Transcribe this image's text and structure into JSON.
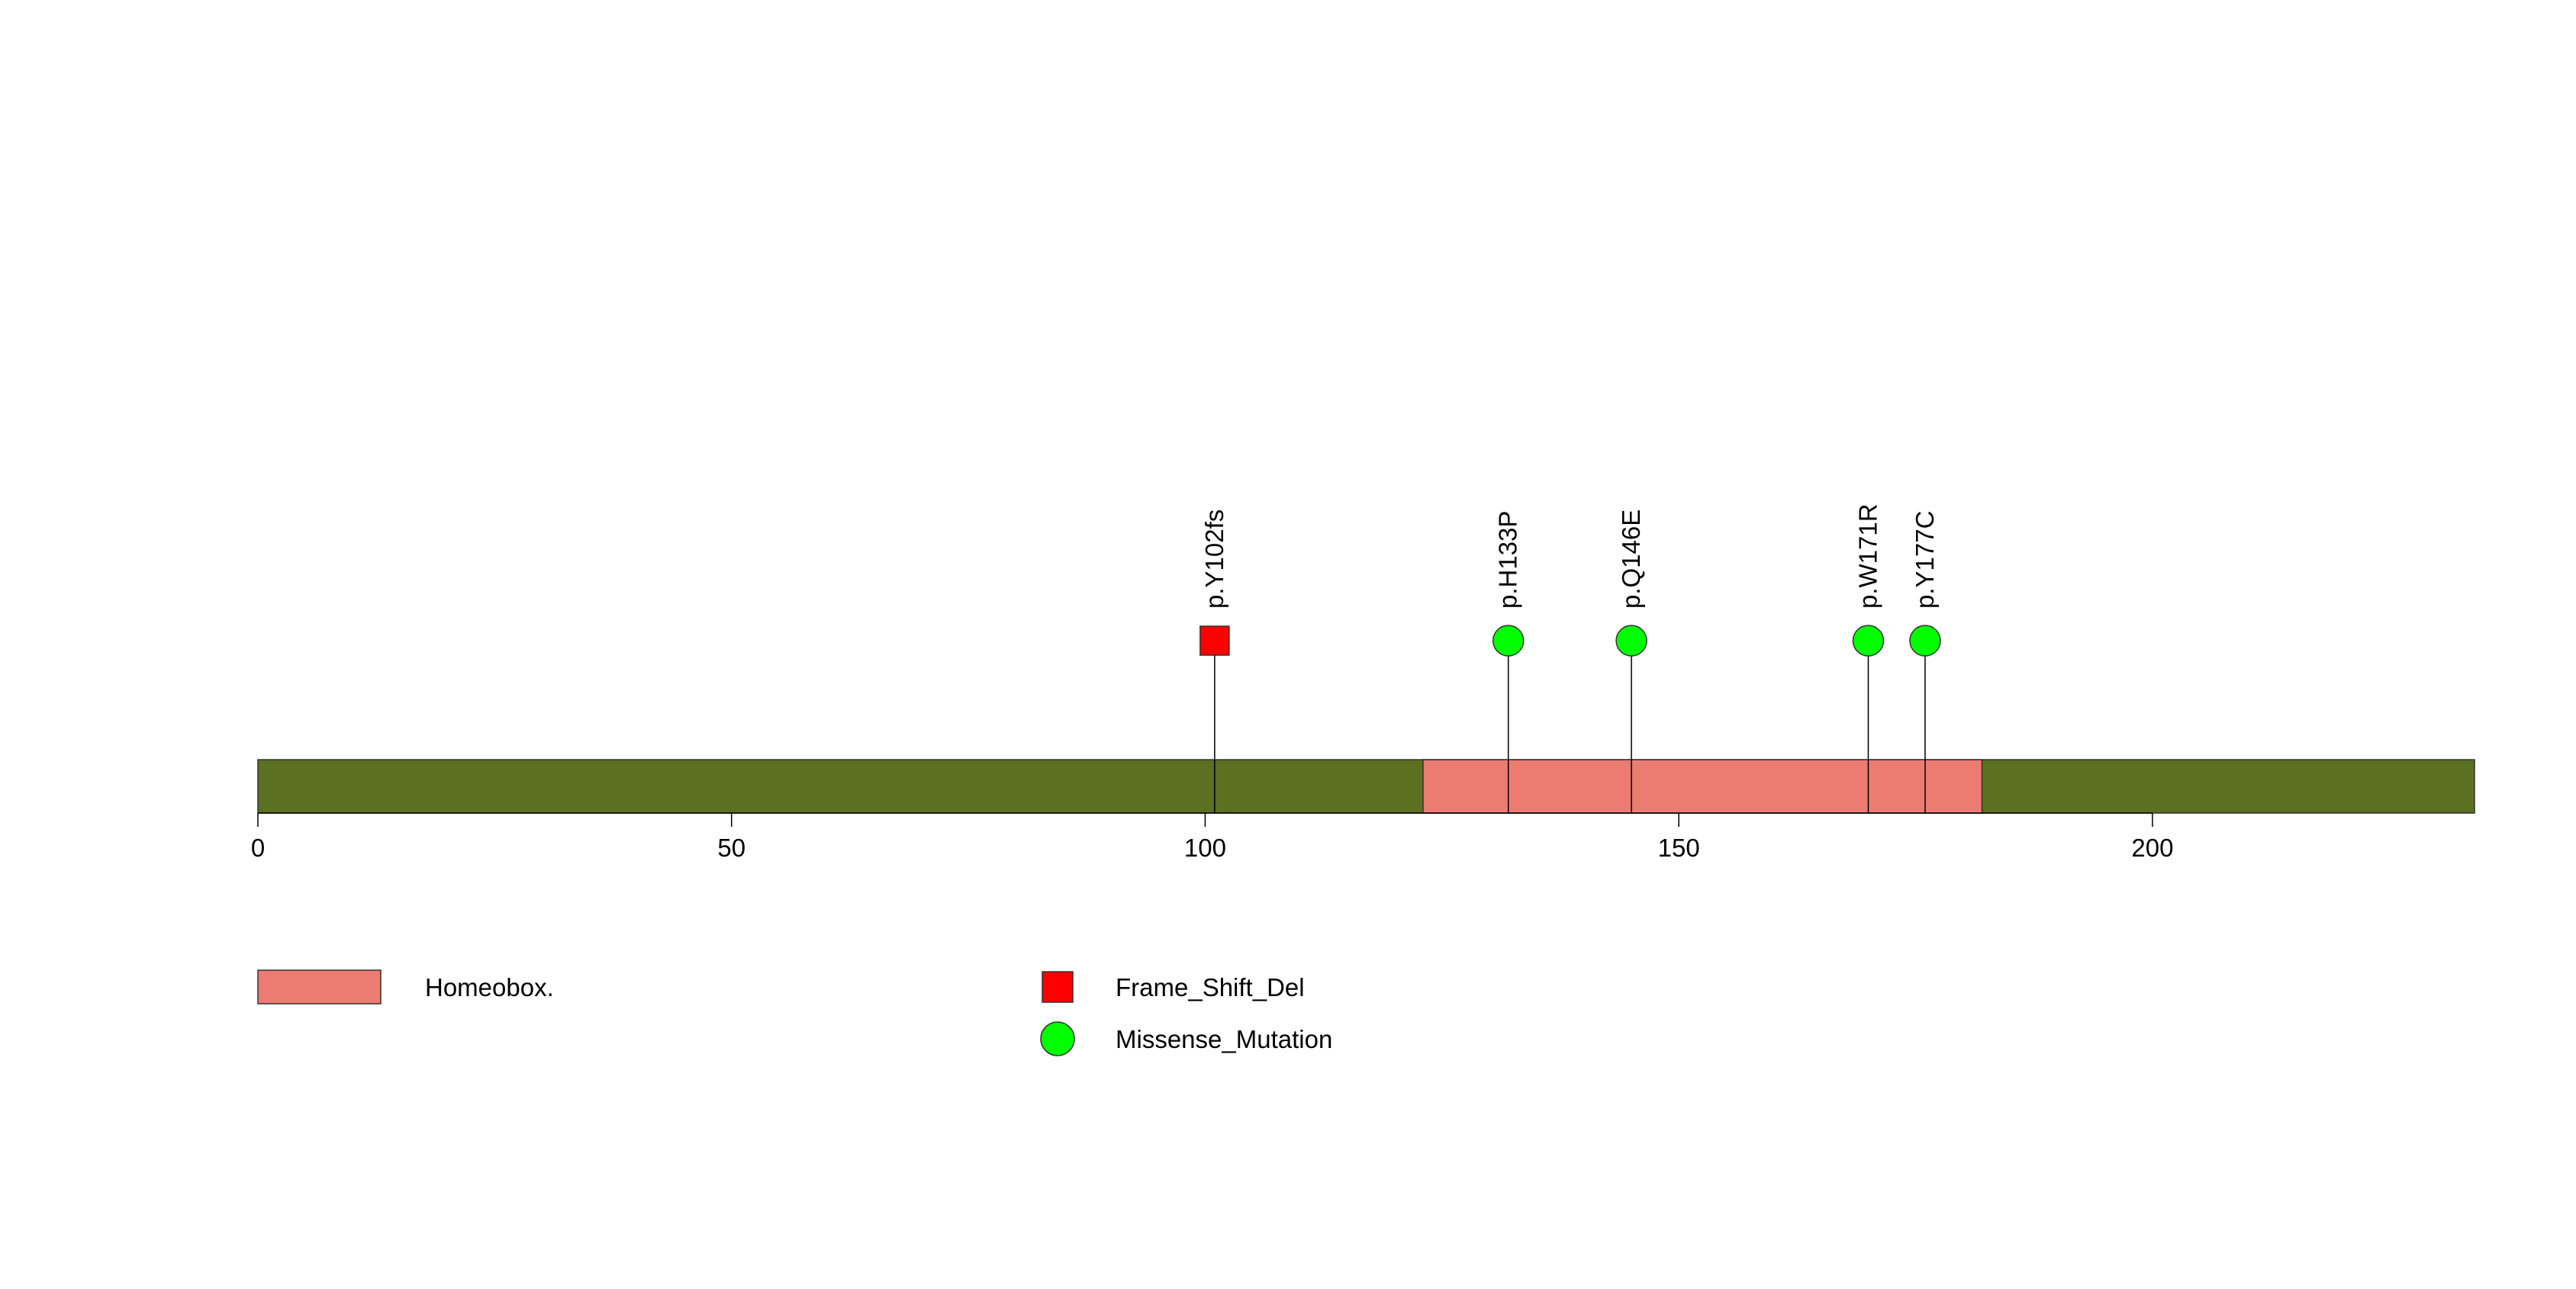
{
  "chart_data": {
    "type": "lollipop",
    "title": "",
    "xlabel": "",
    "ylabel": "",
    "xlim": [
      0,
      234
    ],
    "x_ticks": [
      0,
      50,
      100,
      150,
      200
    ],
    "x_tick_labels": [
      "0",
      "50",
      "100",
      "150",
      "200"
    ],
    "protein_length": 234,
    "backbone_color": "#5b7021",
    "domains": [
      {
        "name": "Homeobox.",
        "start": 123,
        "end": 182,
        "color": "#ec7b72"
      }
    ],
    "mutations": [
      {
        "label": "p.Y102fs",
        "position": 101,
        "type": "Frame_Shift_Del"
      },
      {
        "label": "p.H133P",
        "position": 132,
        "type": "Missense_Mutation"
      },
      {
        "label": "p.Q146E",
        "position": 145,
        "type": "Missense_Mutation"
      },
      {
        "label": "p.W171R",
        "position": 170,
        "type": "Missense_Mutation"
      },
      {
        "label": "p.Y177C",
        "position": 176,
        "type": "Missense_Mutation"
      }
    ],
    "mutation_types": [
      {
        "name": "Frame_Shift_Del",
        "shape": "square",
        "color": "#ff0000"
      },
      {
        "name": "Missense_Mutation",
        "shape": "circle",
        "color": "#00ff00"
      }
    ],
    "legend": {
      "domain_entries": [
        "Homeobox."
      ],
      "mutation_entries": [
        "Frame_Shift_Del",
        "Missense_Mutation"
      ],
      "placement": "bottom-left"
    },
    "grid": false
  }
}
